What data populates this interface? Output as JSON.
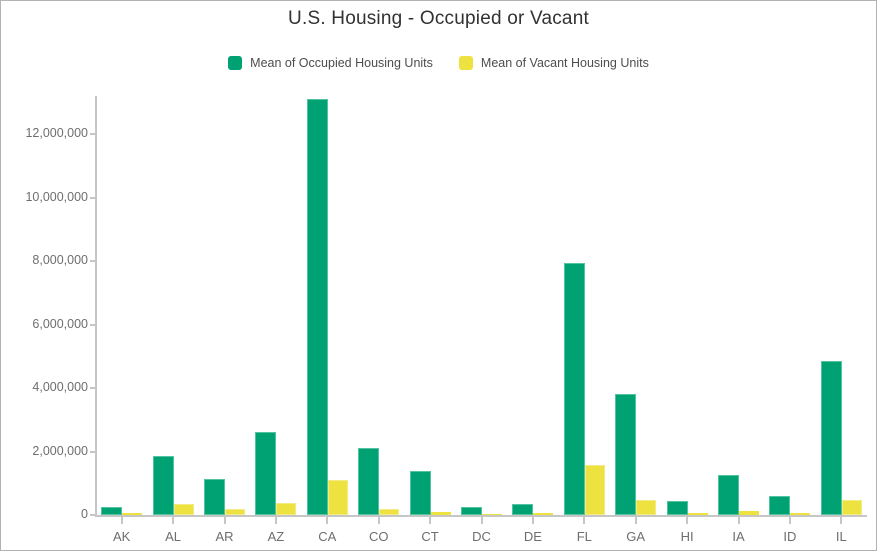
{
  "window": {
    "background": "#ffffff",
    "border_color": "#b3b3b3"
  },
  "colors": {
    "axis": "#c6c6c6",
    "tick_label": "#6e6e6e",
    "title_text": "#323232",
    "legend_text": "#4d4d4d",
    "occupied_green": "#00a274",
    "occupied_green_stroke": "#53c3a0",
    "vacant_yellow": "#ede23f",
    "vacant_yellow_stroke": "#f2ea82"
  },
  "chart_data": {
    "type": "bar",
    "title": "U.S. Housing - Occupied or Vacant",
    "categories": [
      "AK",
      "AL",
      "AR",
      "AZ",
      "CA",
      "CO",
      "CT",
      "DC",
      "DE",
      "FL",
      "GA",
      "HI",
      "IA",
      "ID",
      "IL"
    ],
    "series": [
      {
        "name": "Mean of Occupied Housing Units",
        "color": "#00a274",
        "stroke": "#53c3a0",
        "values": [
          250000,
          1850000,
          1150000,
          2620000,
          13100000,
          2110000,
          1380000,
          250000,
          340000,
          7930000,
          3800000,
          440000,
          1250000,
          600000,
          4850000
        ]
      },
      {
        "name": "Mean of Vacant Housing Units",
        "color": "#ede23f",
        "stroke": "#f2ea82",
        "values": [
          65000,
          360000,
          190000,
          370000,
          1100000,
          200000,
          100000,
          40000,
          70000,
          1580000,
          460000,
          50000,
          120000,
          60000,
          470000
        ]
      }
    ],
    "xlabel": "",
    "ylabel": "",
    "ylim": [
      0,
      13200000
    ],
    "y_ticks": [
      0,
      2000000,
      4000000,
      6000000,
      8000000,
      10000000,
      12000000
    ],
    "y_tick_labels": [
      "0",
      "2,000,000",
      "4,000,000",
      "6,000,000",
      "8,000,000",
      "10,000,000",
      "12,000,000"
    ],
    "grid": false,
    "legend_position": "top"
  }
}
